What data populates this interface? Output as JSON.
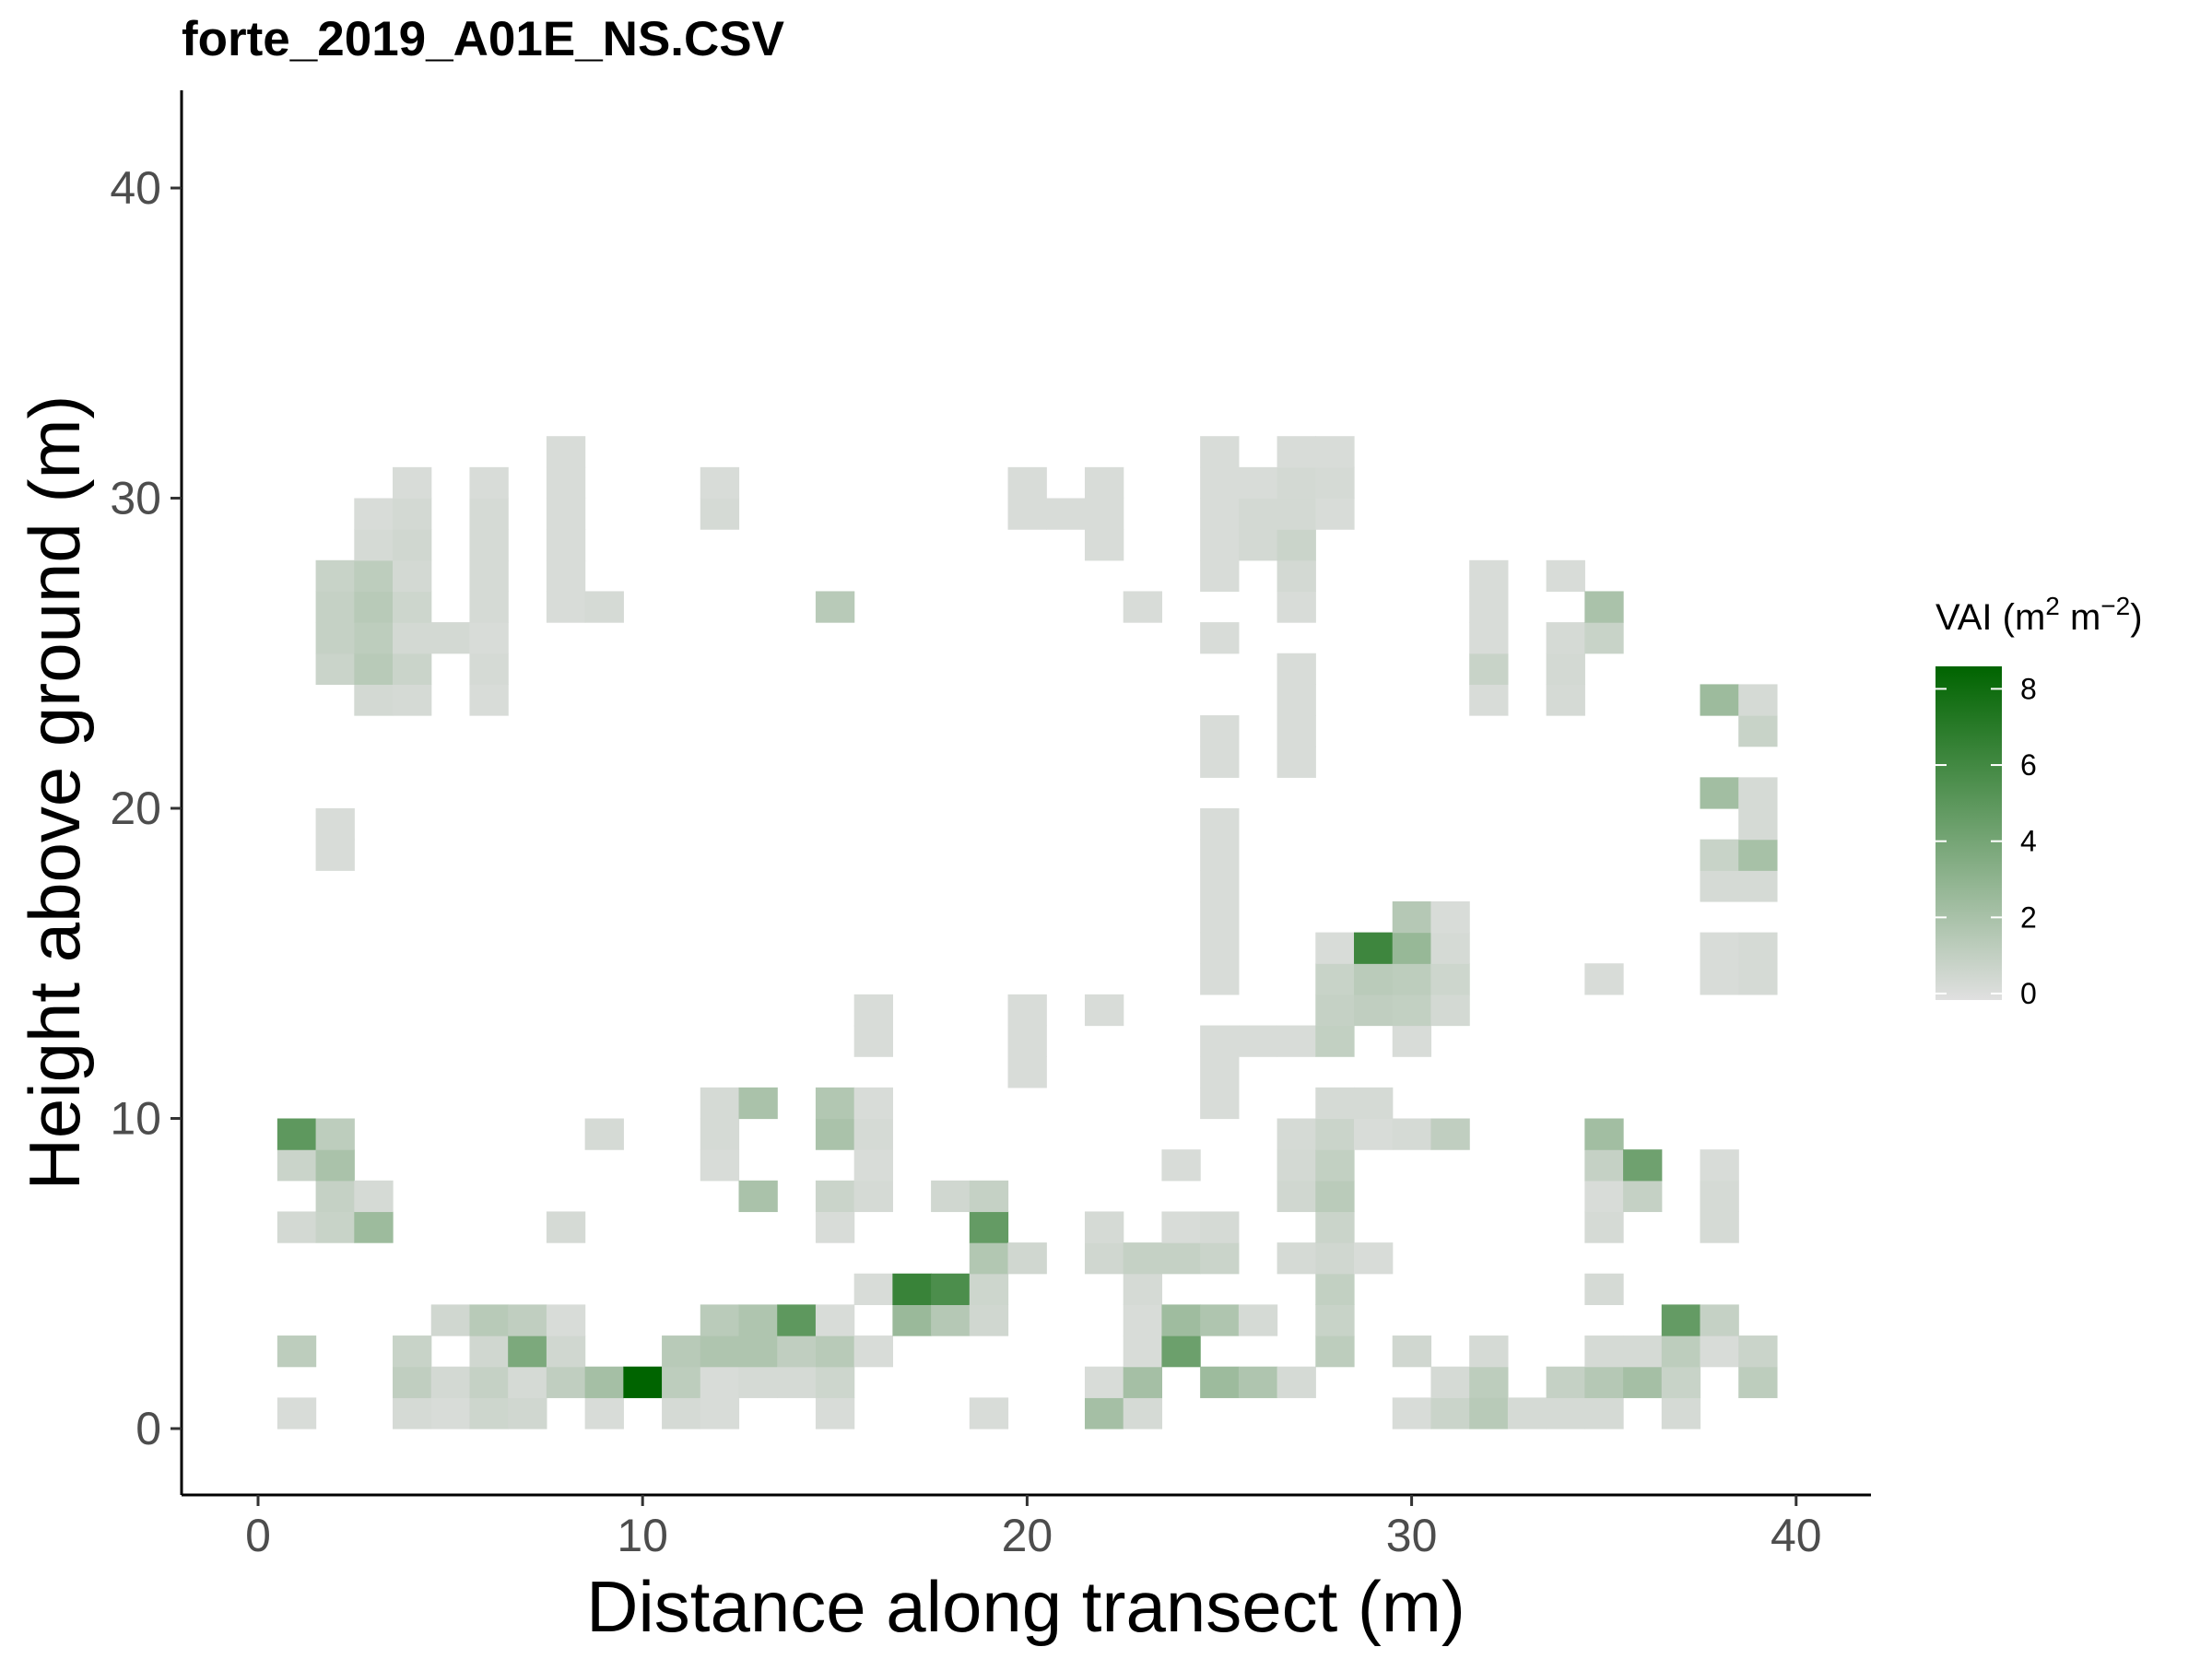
{
  "chart_data": {
    "type": "heatmap",
    "title": "forte_2019_A01E_NS.CSV",
    "xlabel": "Distance along transect (m)",
    "ylabel": "Height above ground (m)",
    "xlim": [
      -2,
      42
    ],
    "ylim": [
      -2,
      43
    ],
    "x_ticks": [
      0,
      10,
      20,
      30,
      40
    ],
    "y_ticks": [
      0,
      10,
      20,
      30,
      40
    ],
    "grid": false,
    "legend": {
      "title_main": "VAI (m",
      "title_exp1": "2",
      "title_mid": " m",
      "title_exp2": "−2",
      "title_end": ")",
      "placement": "right",
      "ticks": [
        0,
        2,
        4,
        6,
        8
      ],
      "range": [
        0,
        8.3
      ],
      "color_low": "#e0e0e0",
      "color_high": "#006400"
    },
    "cells": [
      [
        1,
        1,
        0.3
      ],
      [
        1,
        3,
        1.3
      ],
      [
        1,
        7,
        0.5
      ],
      [
        1,
        9,
        0.8
      ],
      [
        1,
        10,
        4.8
      ],
      [
        2,
        7,
        0.9
      ],
      [
        2,
        8,
        1.0
      ],
      [
        2,
        9,
        2.0
      ],
      [
        2,
        10,
        1.3
      ],
      [
        2,
        19,
        0.3
      ],
      [
        2,
        20,
        0.3
      ],
      [
        2,
        25,
        0.8
      ],
      [
        2,
        26,
        1.0
      ],
      [
        2,
        27,
        1.0
      ],
      [
        2,
        28,
        0.9
      ],
      [
        3,
        7,
        2.5
      ],
      [
        3,
        8,
        0.4
      ],
      [
        3,
        24,
        0.5
      ],
      [
        3,
        25,
        1.5
      ],
      [
        3,
        26,
        1.3
      ],
      [
        3,
        27,
        1.5
      ],
      [
        3,
        28,
        1.3
      ],
      [
        3,
        29,
        0.4
      ],
      [
        3,
        30,
        0.3
      ],
      [
        4,
        1,
        0.4
      ],
      [
        4,
        2,
        1.2
      ],
      [
        4,
        3,
        0.9
      ],
      [
        4,
        24,
        0.4
      ],
      [
        4,
        25,
        0.8
      ],
      [
        4,
        26,
        0.5
      ],
      [
        4,
        27,
        0.7
      ],
      [
        4,
        28,
        0.5
      ],
      [
        4,
        29,
        0.6
      ],
      [
        4,
        30,
        0.5
      ],
      [
        4,
        31,
        0.3
      ],
      [
        5,
        1,
        0.3
      ],
      [
        5,
        2,
        0.5
      ],
      [
        5,
        4,
        0.6
      ],
      [
        5,
        26,
        0.5
      ],
      [
        6,
        1,
        0.7
      ],
      [
        6,
        2,
        1.0
      ],
      [
        6,
        3,
        0.6
      ],
      [
        6,
        4,
        1.5
      ],
      [
        6,
        24,
        0.3
      ],
      [
        6,
        25,
        0.4
      ],
      [
        6,
        26,
        0.3
      ],
      [
        6,
        27,
        0.4
      ],
      [
        6,
        28,
        0.4
      ],
      [
        6,
        29,
        0.4
      ],
      [
        6,
        30,
        0.4
      ],
      [
        6,
        31,
        0.3
      ],
      [
        7,
        1,
        0.6
      ],
      [
        7,
        2,
        0.4
      ],
      [
        7,
        3,
        3.7
      ],
      [
        7,
        4,
        1.2
      ],
      [
        8,
        2,
        1.2
      ],
      [
        8,
        3,
        0.6
      ],
      [
        8,
        4,
        0.3
      ],
      [
        8,
        7,
        0.4
      ],
      [
        8,
        27,
        0.3
      ],
      [
        8,
        28,
        0.3
      ],
      [
        8,
        29,
        0.3
      ],
      [
        8,
        30,
        0.3
      ],
      [
        8,
        31,
        0.3
      ],
      [
        8,
        32,
        0.3
      ],
      [
        9,
        1,
        0.3
      ],
      [
        9,
        2,
        2.2
      ],
      [
        9,
        10,
        0.4
      ],
      [
        9,
        27,
        0.4
      ],
      [
        10,
        2,
        8.3
      ],
      [
        11,
        1,
        0.4
      ],
      [
        11,
        2,
        1.3
      ],
      [
        11,
        3,
        1.5
      ],
      [
        12,
        1,
        0.3
      ],
      [
        12,
        2,
        0.3
      ],
      [
        12,
        3,
        1.8
      ],
      [
        12,
        4,
        1.4
      ],
      [
        12,
        9,
        0.3
      ],
      [
        12,
        10,
        0.4
      ],
      [
        12,
        11,
        0.4
      ],
      [
        12,
        30,
        0.4
      ],
      [
        12,
        31,
        0.3
      ],
      [
        13,
        2,
        0.4
      ],
      [
        13,
        3,
        1.8
      ],
      [
        13,
        4,
        1.8
      ],
      [
        13,
        8,
        2.0
      ],
      [
        13,
        11,
        2.0
      ],
      [
        14,
        2,
        0.4
      ],
      [
        14,
        3,
        1.2
      ],
      [
        14,
        4,
        4.8
      ],
      [
        15,
        1,
        0.3
      ],
      [
        15,
        2,
        0.7
      ],
      [
        15,
        3,
        1.5
      ],
      [
        15,
        4,
        0.3
      ],
      [
        15,
        7,
        0.3
      ],
      [
        15,
        8,
        0.8
      ],
      [
        15,
        10,
        2.0
      ],
      [
        15,
        11,
        1.7
      ],
      [
        15,
        27,
        1.5
      ],
      [
        16,
        3,
        0.3
      ],
      [
        16,
        5,
        0.3
      ],
      [
        16,
        8,
        0.4
      ],
      [
        16,
        9,
        0.3
      ],
      [
        16,
        10,
        0.4
      ],
      [
        16,
        11,
        0.3
      ],
      [
        16,
        13,
        0.3
      ],
      [
        16,
        14,
        0.3
      ],
      [
        17,
        4,
        2.6
      ],
      [
        17,
        5,
        6.2
      ],
      [
        18,
        4,
        1.6
      ],
      [
        18,
        5,
        5.5
      ],
      [
        18,
        8,
        0.6
      ],
      [
        19,
        1,
        0.3
      ],
      [
        19,
        4,
        0.6
      ],
      [
        19,
        5,
        0.7
      ],
      [
        19,
        6,
        1.7
      ],
      [
        19,
        7,
        4.6
      ],
      [
        19,
        8,
        1.0
      ],
      [
        20,
        6,
        0.6
      ],
      [
        20,
        12,
        0.3
      ],
      [
        20,
        13,
        0.3
      ],
      [
        20,
        14,
        0.3
      ],
      [
        20,
        30,
        0.3
      ],
      [
        20,
        31,
        0.3
      ],
      [
        21,
        30,
        0.3
      ],
      [
        22,
        1,
        2.2
      ],
      [
        22,
        2,
        0.3
      ],
      [
        22,
        6,
        0.6
      ],
      [
        22,
        7,
        0.4
      ],
      [
        22,
        14,
        0.3
      ],
      [
        22,
        29,
        0.3
      ],
      [
        22,
        30,
        0.3
      ],
      [
        22,
        31,
        0.3
      ],
      [
        23,
        1,
        0.4
      ],
      [
        23,
        2,
        2.2
      ],
      [
        23,
        3,
        0.3
      ],
      [
        23,
        4,
        0.3
      ],
      [
        23,
        5,
        0.4
      ],
      [
        23,
        6,
        1.0
      ],
      [
        23,
        27,
        0.3
      ],
      [
        24,
        3,
        4.3
      ],
      [
        24,
        4,
        2.4
      ],
      [
        24,
        6,
        1.0
      ],
      [
        24,
        7,
        0.3
      ],
      [
        24,
        9,
        0.3
      ],
      [
        25,
        2,
        2.5
      ],
      [
        25,
        4,
        1.8
      ],
      [
        25,
        6,
        0.8
      ],
      [
        25,
        7,
        0.4
      ],
      [
        25,
        11,
        0.3
      ],
      [
        25,
        12,
        0.3
      ],
      [
        25,
        13,
        0.3
      ],
      [
        25,
        15,
        0.3
      ],
      [
        25,
        16,
        0.3
      ],
      [
        25,
        17,
        0.3
      ],
      [
        25,
        18,
        0.3
      ],
      [
        25,
        19,
        0.3
      ],
      [
        25,
        20,
        0.3
      ],
      [
        25,
        22,
        0.3
      ],
      [
        25,
        23,
        0.3
      ],
      [
        25,
        26,
        0.3
      ],
      [
        25,
        28,
        0.3
      ],
      [
        25,
        29,
        0.3
      ],
      [
        25,
        30,
        0.3
      ],
      [
        25,
        31,
        0.3
      ],
      [
        25,
        32,
        0.3
      ],
      [
        26,
        2,
        1.8
      ],
      [
        26,
        4,
        0.4
      ],
      [
        26,
        13,
        0.3
      ],
      [
        26,
        29,
        0.5
      ],
      [
        26,
        30,
        0.5
      ],
      [
        26,
        31,
        0.3
      ],
      [
        27,
        2,
        0.4
      ],
      [
        27,
        6,
        0.4
      ],
      [
        27,
        8,
        0.6
      ],
      [
        27,
        9,
        0.5
      ],
      [
        27,
        10,
        0.4
      ],
      [
        27,
        13,
        0.3
      ],
      [
        27,
        22,
        0.3
      ],
      [
        27,
        23,
        0.3
      ],
      [
        27,
        24,
        0.3
      ],
      [
        27,
        25,
        0.3
      ],
      [
        27,
        27,
        0.3
      ],
      [
        27,
        28,
        0.5
      ],
      [
        27,
        29,
        0.8
      ],
      [
        27,
        30,
        0.5
      ],
      [
        27,
        31,
        0.5
      ],
      [
        27,
        32,
        0.3
      ],
      [
        28,
        3,
        1.3
      ],
      [
        28,
        4,
        0.9
      ],
      [
        28,
        5,
        1.1
      ],
      [
        28,
        6,
        0.6
      ],
      [
        28,
        7,
        0.8
      ],
      [
        28,
        8,
        1.4
      ],
      [
        28,
        9,
        1.1
      ],
      [
        28,
        10,
        0.8
      ],
      [
        28,
        11,
        0.4
      ],
      [
        28,
        13,
        1.1
      ],
      [
        28,
        14,
        1.0
      ],
      [
        28,
        15,
        0.9
      ],
      [
        28,
        16,
        0.3
      ],
      [
        28,
        30,
        0.3
      ],
      [
        28,
        31,
        0.4
      ],
      [
        28,
        32,
        0.3
      ],
      [
        29,
        6,
        0.3
      ],
      [
        29,
        10,
        0.3
      ],
      [
        29,
        11,
        0.4
      ],
      [
        29,
        14,
        1.2
      ],
      [
        29,
        15,
        1.4
      ],
      [
        29,
        16,
        6.0
      ],
      [
        30,
        1,
        0.3
      ],
      [
        30,
        3,
        0.6
      ],
      [
        30,
        10,
        0.4
      ],
      [
        30,
        13,
        0.3
      ],
      [
        30,
        14,
        1.1
      ],
      [
        30,
        15,
        1.3
      ],
      [
        30,
        16,
        2.7
      ],
      [
        30,
        17,
        1.6
      ],
      [
        31,
        1,
        0.8
      ],
      [
        31,
        2,
        0.4
      ],
      [
        31,
        10,
        1.2
      ],
      [
        31,
        14,
        0.5
      ],
      [
        31,
        15,
        0.7
      ],
      [
        31,
        16,
        0.4
      ],
      [
        31,
        17,
        0.3
      ],
      [
        32,
        1,
        1.5
      ],
      [
        32,
        2,
        1.3
      ],
      [
        32,
        3,
        0.4
      ],
      [
        32,
        24,
        0.3
      ],
      [
        32,
        25,
        0.9
      ],
      [
        32,
        26,
        0.3
      ],
      [
        32,
        27,
        0.3
      ],
      [
        32,
        28,
        0.3
      ],
      [
        33,
        1,
        0.4
      ],
      [
        34,
        1,
        0.4
      ],
      [
        34,
        2,
        1.0
      ],
      [
        34,
        24,
        0.4
      ],
      [
        34,
        25,
        0.5
      ],
      [
        34,
        26,
        0.4
      ],
      [
        34,
        28,
        0.3
      ],
      [
        35,
        1,
        0.4
      ],
      [
        35,
        2,
        1.6
      ],
      [
        35,
        3,
        0.4
      ],
      [
        35,
        5,
        0.4
      ],
      [
        35,
        7,
        0.4
      ],
      [
        35,
        8,
        0.3
      ],
      [
        35,
        9,
        1.0
      ],
      [
        35,
        10,
        2.3
      ],
      [
        35,
        15,
        0.3
      ],
      [
        35,
        26,
        0.9
      ],
      [
        35,
        27,
        2.0
      ],
      [
        36,
        2,
        2.2
      ],
      [
        36,
        3,
        0.4
      ],
      [
        36,
        8,
        1.0
      ],
      [
        36,
        9,
        4.2
      ],
      [
        37,
        1,
        0.4
      ],
      [
        37,
        2,
        0.9
      ],
      [
        37,
        3,
        1.3
      ],
      [
        37,
        4,
        4.6
      ],
      [
        38,
        3,
        0.3
      ],
      [
        38,
        4,
        1.0
      ],
      [
        38,
        7,
        0.4
      ],
      [
        38,
        8,
        0.4
      ],
      [
        38,
        9,
        0.3
      ],
      [
        38,
        15,
        0.3
      ],
      [
        38,
        16,
        0.3
      ],
      [
        38,
        18,
        0.4
      ],
      [
        38,
        19,
        0.9
      ],
      [
        38,
        21,
        2.3
      ],
      [
        38,
        24,
        2.5
      ],
      [
        39,
        2,
        1.3
      ],
      [
        39,
        3,
        0.8
      ],
      [
        39,
        15,
        0.4
      ],
      [
        39,
        16,
        0.4
      ],
      [
        39,
        18,
        0.4
      ],
      [
        39,
        19,
        2.1
      ],
      [
        39,
        20,
        0.4
      ],
      [
        39,
        21,
        0.4
      ],
      [
        39,
        23,
        0.9
      ],
      [
        39,
        24,
        0.4
      ]
    ]
  }
}
